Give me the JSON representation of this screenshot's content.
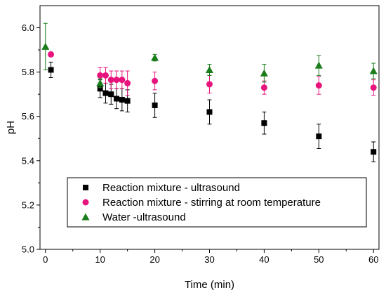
{
  "chart_data": {
    "type": "scatter",
    "title": "",
    "xlabel": "Time (min)",
    "ylabel": "pH",
    "xlim": [
      -1,
      61
    ],
    "ylim": [
      5.0,
      6.1
    ],
    "x_ticks": [
      0,
      10,
      20,
      30,
      40,
      50,
      60
    ],
    "y_ticks": [
      5.0,
      5.2,
      5.4,
      5.6,
      5.8,
      6.0
    ],
    "y_tick_labels": [
      "5.0",
      "5.2",
      "5.4",
      "5.6",
      "5.8",
      "6.0"
    ],
    "grid": false,
    "legend_position": "bottom-center",
    "series": [
      {
        "name": "Reaction mixture - ultrasound",
        "marker": "square",
        "color": "#000000",
        "points": [
          {
            "x": 1,
            "y": 5.81,
            "err": 0.035
          },
          {
            "x": 10,
            "y": 5.725,
            "err": 0.04
          },
          {
            "x": 11,
            "y": 5.705,
            "err": 0.045
          },
          {
            "x": 12,
            "y": 5.7,
            "err": 0.045
          },
          {
            "x": 13,
            "y": 5.68,
            "err": 0.045
          },
          {
            "x": 14,
            "y": 5.675,
            "err": 0.05
          },
          {
            "x": 15,
            "y": 5.67,
            "err": 0.05
          },
          {
            "x": 20,
            "y": 5.65,
            "err": 0.055
          },
          {
            "x": 30,
            "y": 5.62,
            "err": 0.055
          },
          {
            "x": 40,
            "y": 5.57,
            "err": 0.05
          },
          {
            "x": 50,
            "y": 5.51,
            "err": 0.055
          },
          {
            "x": 60,
            "y": 5.44,
            "err": 0.045
          }
        ]
      },
      {
        "name": "Reaction mixture - stirring at room temperature",
        "marker": "circle",
        "color": "#e8147e",
        "points": [
          {
            "x": 1,
            "y": 5.88,
            "err": 0
          },
          {
            "x": 10,
            "y": 5.785,
            "err": 0.035
          },
          {
            "x": 11,
            "y": 5.785,
            "err": 0.035
          },
          {
            "x": 12,
            "y": 5.765,
            "err": 0.04
          },
          {
            "x": 13,
            "y": 5.765,
            "err": 0.04
          },
          {
            "x": 14,
            "y": 5.765,
            "err": 0.04
          },
          {
            "x": 15,
            "y": 5.75,
            "err": 0.055
          },
          {
            "x": 20,
            "y": 5.76,
            "err": 0.04
          },
          {
            "x": 30,
            "y": 5.745,
            "err": 0.04
          },
          {
            "x": 40,
            "y": 5.73,
            "err": 0.03
          },
          {
            "x": 50,
            "y": 5.74,
            "err": 0.04
          },
          {
            "x": 60,
            "y": 5.73,
            "err": 0.035
          }
        ]
      },
      {
        "name": "Water -ultrasound",
        "marker": "triangle",
        "color": "#1a7d1a",
        "points": [
          {
            "x": 0,
            "y": 5.915,
            "err": 0.105
          },
          {
            "x": 10,
            "y": 5.75,
            "err": 0.02
          },
          {
            "x": 20,
            "y": 5.865,
            "err": 0.015
          },
          {
            "x": 30,
            "y": 5.81,
            "err": 0.025
          },
          {
            "x": 40,
            "y": 5.795,
            "err": 0.04
          },
          {
            "x": 50,
            "y": 5.83,
            "err": 0.045
          },
          {
            "x": 60,
            "y": 5.805,
            "err": 0.035
          }
        ]
      }
    ]
  }
}
